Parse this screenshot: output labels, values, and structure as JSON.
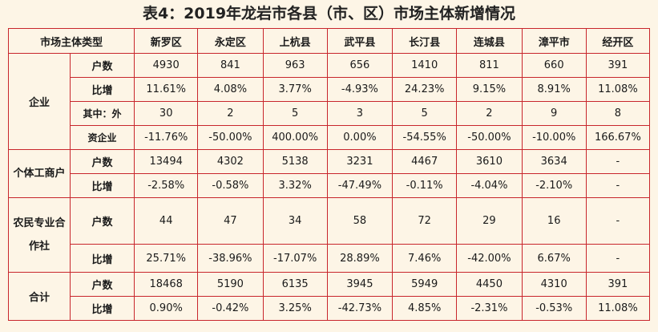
{
  "title": "表4：2019年龙岩市各县（市、区）市场主体新增情况",
  "header": {
    "type_col": "市场主体类型",
    "regions": [
      "新罗区",
      "永定区",
      "上杭县",
      "武平县",
      "长汀县",
      "连城县",
      "漳平市",
      "经开区"
    ]
  },
  "labels": {
    "enterprise": "企业",
    "households": "户数",
    "growth": "比增",
    "foreign_line1": "其中：外",
    "foreign_line2": "资企业",
    "individual": "个体工商户",
    "coop": "农民专业合作社",
    "total": "合计"
  },
  "rows": {
    "enterprise_households": [
      "4930",
      "841",
      "963",
      "656",
      "1410",
      "811",
      "660",
      "391"
    ],
    "enterprise_growth": [
      "11.61%",
      "4.08%",
      "3.77%",
      "-4.93%",
      "24.23%",
      "9.15%",
      "8.91%",
      "11.08%"
    ],
    "foreign_households": [
      "30",
      "2",
      "5",
      "3",
      "5",
      "2",
      "9",
      "8"
    ],
    "foreign_growth": [
      "-11.76%",
      "-50.00%",
      "400.00%",
      "0.00%",
      "-54.55%",
      "-50.00%",
      "-10.00%",
      "166.67%"
    ],
    "individual_households": [
      "13494",
      "4302",
      "5138",
      "3231",
      "4467",
      "3610",
      "3634",
      "-"
    ],
    "individual_growth": [
      "-2.58%",
      "-0.58%",
      "3.32%",
      "-47.49%",
      "-0.11%",
      "-4.04%",
      "-2.10%",
      "-"
    ],
    "coop_households": [
      "44",
      "47",
      "34",
      "58",
      "72",
      "29",
      "16",
      "-"
    ],
    "coop_growth": [
      "25.71%",
      "-38.96%",
      "-17.07%",
      "28.89%",
      "7.46%",
      "-42.00%",
      "6.67%",
      "-"
    ],
    "total_households": [
      "18468",
      "5190",
      "6135",
      "3945",
      "5949",
      "4450",
      "4310",
      "391"
    ],
    "total_growth": [
      "0.90%",
      "-0.42%",
      "3.25%",
      "-42.73%",
      "4.85%",
      "-2.31%",
      "-0.53%",
      "11.08%"
    ]
  }
}
